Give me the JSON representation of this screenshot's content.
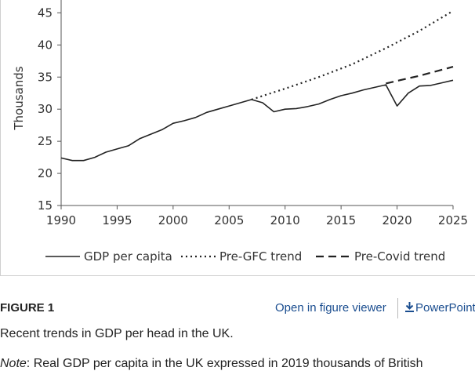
{
  "chart_data": {
    "type": "line",
    "title": "",
    "xlabel": "",
    "ylabel": "Thousands",
    "xlim": [
      1990,
      2025
    ],
    "ylim": [
      15,
      45
    ],
    "xticks": [
      1990,
      1995,
      2000,
      2005,
      2010,
      2015,
      2020,
      2025
    ],
    "yticks": [
      15,
      20,
      25,
      30,
      35,
      40,
      45
    ],
    "grid": false,
    "legend_position": "bottom",
    "series": [
      {
        "name": "GDP per capita",
        "style": "solid",
        "color": "#222222",
        "x": [
          1990,
          1991,
          1992,
          1993,
          1994,
          1995,
          1996,
          1997,
          1998,
          1999,
          2000,
          2001,
          2002,
          2003,
          2004,
          2005,
          2006,
          2007,
          2008,
          2009,
          2010,
          2011,
          2012,
          2013,
          2014,
          2015,
          2016,
          2017,
          2018,
          2019,
          2020,
          2021,
          2022,
          2023,
          2024,
          2025
        ],
        "y": [
          22.4,
          22.0,
          22.0,
          22.5,
          23.3,
          23.8,
          24.3,
          25.4,
          26.1,
          26.8,
          27.8,
          28.2,
          28.7,
          29.5,
          30.0,
          30.5,
          31.0,
          31.5,
          31.0,
          29.6,
          30.0,
          30.1,
          30.4,
          30.8,
          31.5,
          32.1,
          32.5,
          33.0,
          33.4,
          33.8,
          30.5,
          32.5,
          33.6,
          33.7,
          34.1,
          34.5
        ]
      },
      {
        "name": "Pre-GFC trend",
        "style": "dotted",
        "color": "#222222",
        "x": [
          2007,
          2010,
          2013,
          2016,
          2019,
          2022,
          2025
        ],
        "y": [
          31.5,
          33.2,
          35.0,
          37.0,
          39.5,
          42.2,
          45.3
        ]
      },
      {
        "name": "Pre-Covid trend",
        "style": "dashed",
        "color": "#222222",
        "x": [
          2019,
          2022,
          2025
        ],
        "y": [
          34.0,
          35.2,
          36.6
        ]
      }
    ]
  },
  "figure": {
    "label": "FIGURE 1",
    "viewer_link": "Open in figure viewer",
    "powerpoint_link": "PowerPoint",
    "caption": "Recent trends in GDP per head in the UK.",
    "note_label": "Note",
    "note_text": ": Real GDP per capita in the UK expressed in 2019 thousands of British"
  }
}
